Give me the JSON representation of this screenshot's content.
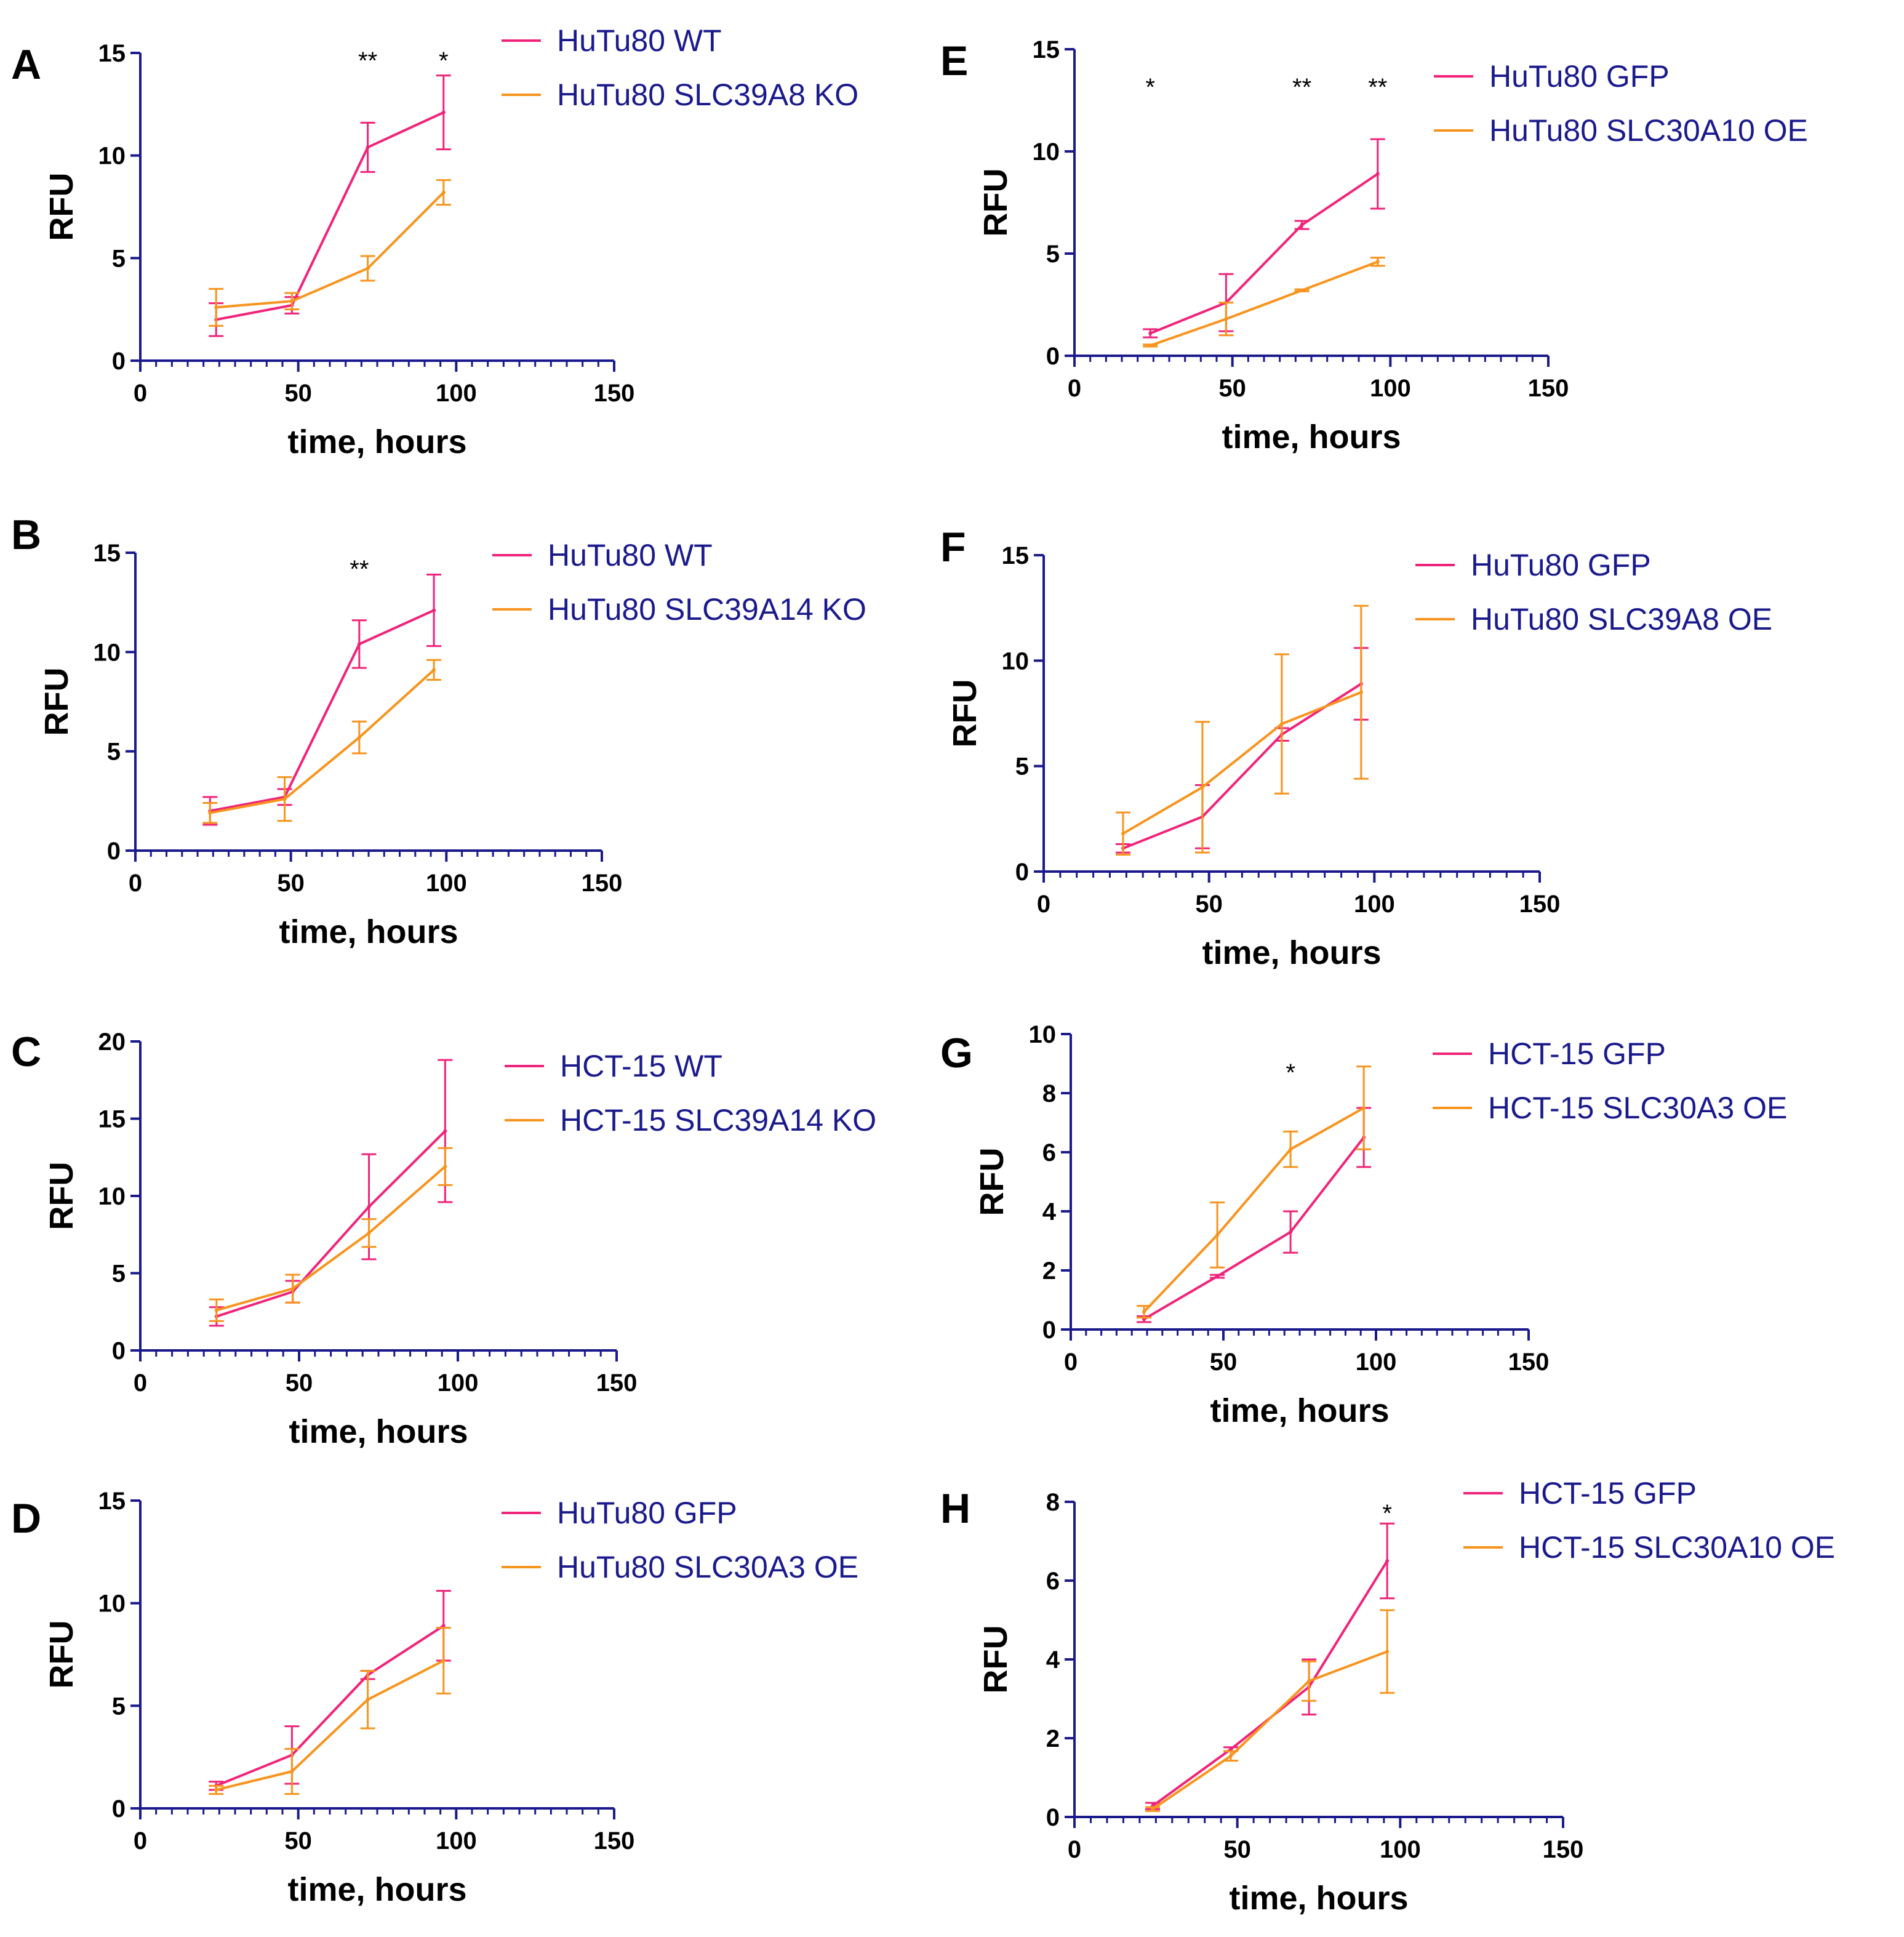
{
  "figure": {
    "axis_color": "#1a1a8c",
    "colors": {
      "wt": "#f0237a",
      "mut": "#f7941d"
    }
  },
  "chart_data": [
    {
      "id": "A",
      "type": "line",
      "panel": "A",
      "xlabel": "time, hours",
      "ylabel": "RFU",
      "xlim": [
        0,
        150
      ],
      "ylim": [
        0,
        15
      ],
      "xticks": [
        0,
        50,
        100,
        150
      ],
      "yticks": [
        0,
        5,
        10,
        15
      ],
      "legend": [
        "HuTu80 WT",
        "HuTu80 SLC39A8 KO"
      ],
      "significance": [
        {
          "x": 72,
          "label": "**"
        },
        {
          "x": 96,
          "label": "*"
        }
      ],
      "series": [
        {
          "name": "HuTu80 WT",
          "color": "#f0237a",
          "x": [
            24,
            48,
            72,
            96
          ],
          "y": [
            2.0,
            2.7,
            10.4,
            12.1
          ],
          "err": [
            0.8,
            0.4,
            1.2,
            1.8
          ]
        },
        {
          "name": "HuTu80 SLC39A8 KO",
          "color": "#f7941d",
          "x": [
            24,
            48,
            72,
            96
          ],
          "y": [
            2.6,
            2.9,
            4.5,
            8.2
          ],
          "err": [
            0.9,
            0.4,
            0.6,
            0.6
          ]
        }
      ]
    },
    {
      "id": "B",
      "type": "line",
      "panel": "B",
      "xlabel": "time, hours",
      "ylabel": "RFU",
      "xlim": [
        0,
        150
      ],
      "ylim": [
        0,
        15
      ],
      "xticks": [
        0,
        50,
        100,
        150
      ],
      "yticks": [
        0,
        5,
        10,
        15
      ],
      "legend": [
        "HuTu80 WT",
        "HuTu80 SLC39A14 KO"
      ],
      "significance": [
        {
          "x": 72,
          "label": "**"
        }
      ],
      "series": [
        {
          "name": "HuTu80 WT",
          "color": "#f0237a",
          "x": [
            24,
            48,
            72,
            96
          ],
          "y": [
            2.0,
            2.7,
            10.4,
            12.1
          ],
          "err": [
            0.7,
            0.4,
            1.2,
            1.8
          ]
        },
        {
          "name": "HuTu80 SLC39A14 KO",
          "color": "#f7941d",
          "x": [
            24,
            48,
            72,
            96
          ],
          "y": [
            1.9,
            2.6,
            5.7,
            9.1
          ],
          "err": [
            0.5,
            1.1,
            0.8,
            0.5
          ]
        }
      ]
    },
    {
      "id": "C",
      "type": "line",
      "panel": "C",
      "xlabel": "time, hours",
      "ylabel": "RFU",
      "xlim": [
        0,
        150
      ],
      "ylim": [
        0,
        20
      ],
      "xticks": [
        0,
        50,
        100,
        150
      ],
      "yticks": [
        0,
        5,
        10,
        15,
        20
      ],
      "legend": [
        "HCT-15 WT",
        "HCT-15 SLC39A14 KO"
      ],
      "significance": [],
      "series": [
        {
          "name": "HCT-15 WT",
          "color": "#f0237a",
          "x": [
            24,
            48,
            72,
            96
          ],
          "y": [
            2.2,
            3.8,
            9.3,
            14.2
          ],
          "err": [
            0.6,
            0.7,
            3.4,
            4.6
          ]
        },
        {
          "name": "HCT-15 SLC39A14 KO",
          "color": "#f7941d",
          "x": [
            24,
            48,
            72,
            96
          ],
          "y": [
            2.6,
            4.0,
            7.6,
            11.9
          ],
          "err": [
            0.7,
            0.9,
            0.9,
            1.2
          ]
        }
      ]
    },
    {
      "id": "D",
      "type": "line",
      "panel": "D",
      "xlabel": "time, hours",
      "ylabel": "RFU",
      "xlim": [
        0,
        150
      ],
      "ylim": [
        0,
        15
      ],
      "xticks": [
        0,
        50,
        100,
        150
      ],
      "yticks": [
        0,
        5,
        10,
        15
      ],
      "legend": [
        "HuTu80 GFP",
        "HuTu80 SLC30A3 OE"
      ],
      "significance": [],
      "series": [
        {
          "name": "HuTu80 GFP",
          "color": "#f0237a",
          "x": [
            24,
            48,
            72,
            96
          ],
          "y": [
            1.1,
            2.6,
            6.5,
            8.9
          ],
          "err": [
            0.2,
            1.4,
            0.2,
            1.7
          ]
        },
        {
          "name": "HuTu80 SLC30A3 OE",
          "color": "#f7941d",
          "x": [
            24,
            48,
            72,
            96
          ],
          "y": [
            0.9,
            1.8,
            5.3,
            7.2
          ],
          "err": [
            0.2,
            1.1,
            1.4,
            1.6
          ]
        }
      ]
    },
    {
      "id": "E",
      "type": "line",
      "panel": "E",
      "xlabel": "time, hours",
      "ylabel": "RFU",
      "xlim": [
        0,
        150
      ],
      "ylim": [
        0,
        15
      ],
      "xticks": [
        0,
        50,
        100,
        150
      ],
      "yticks": [
        0,
        5,
        10,
        15
      ],
      "legend": [
        "HuTu80 GFP",
        "HuTu80 SLC30A10 OE"
      ],
      "significance": [
        {
          "x": 24,
          "label": "*"
        },
        {
          "x": 72,
          "label": "**"
        },
        {
          "x": 96,
          "label": "**"
        }
      ],
      "series": [
        {
          "name": "HuTu80 GFP",
          "color": "#f0237a",
          "x": [
            24,
            48,
            72,
            96
          ],
          "y": [
            1.1,
            2.6,
            6.4,
            8.9
          ],
          "err": [
            0.2,
            1.4,
            0.2,
            1.7
          ]
        },
        {
          "name": "HuTu80 SLC30A10 OE",
          "color": "#f7941d",
          "x": [
            24,
            48,
            72,
            96
          ],
          "y": [
            0.5,
            1.8,
            3.2,
            4.6
          ],
          "err": [
            0.05,
            0.8,
            0.05,
            0.2
          ]
        }
      ]
    },
    {
      "id": "F",
      "type": "line",
      "panel": "F",
      "xlabel": "time, hours",
      "ylabel": "RFU",
      "xlim": [
        0,
        150
      ],
      "ylim": [
        0,
        15
      ],
      "xticks": [
        0,
        50,
        100,
        150
      ],
      "yticks": [
        0,
        5,
        10,
        15
      ],
      "legend": [
        "HuTu80 GFP",
        "HuTu80 SLC39A8 OE"
      ],
      "significance": [],
      "series": [
        {
          "name": "HuTu80 GFP",
          "color": "#f0237a",
          "x": [
            24,
            48,
            72,
            96
          ],
          "y": [
            1.1,
            2.6,
            6.5,
            8.9
          ],
          "err": [
            0.2,
            1.5,
            0.3,
            1.7
          ]
        },
        {
          "name": "HuTu80 SLC39A8 OE",
          "color": "#f7941d",
          "x": [
            24,
            48,
            72,
            96
          ],
          "y": [
            1.8,
            4.0,
            7.0,
            8.5
          ],
          "err": [
            1.0,
            3.1,
            3.3,
            4.1
          ]
        }
      ]
    },
    {
      "id": "G",
      "type": "line",
      "panel": "G",
      "xlabel": "time, hours",
      "ylabel": "RFU",
      "xlim": [
        0,
        150
      ],
      "ylim": [
        0,
        10
      ],
      "xticks": [
        0,
        50,
        100,
        150
      ],
      "yticks": [
        0,
        2,
        4,
        6,
        8,
        10
      ],
      "legend": [
        "HCT-15 GFP",
        "HCT-15 SLC30A3 OE"
      ],
      "significance": [
        {
          "x": 72,
          "label": "*"
        }
      ],
      "series": [
        {
          "name": "HCT-15 GFP",
          "color": "#f0237a",
          "x": [
            24,
            48,
            72,
            96
          ],
          "y": [
            0.35,
            1.8,
            3.3,
            6.5
          ],
          "err": [
            0.1,
            0.05,
            0.7,
            1.0
          ]
        },
        {
          "name": "HCT-15 SLC30A3 OE",
          "color": "#f7941d",
          "x": [
            24,
            48,
            72,
            96
          ],
          "y": [
            0.6,
            3.2,
            6.1,
            7.5
          ],
          "err": [
            0.2,
            1.1,
            0.6,
            1.4
          ]
        }
      ]
    },
    {
      "id": "H",
      "type": "line",
      "panel": "H",
      "xlabel": "time, hours",
      "ylabel": "RFU",
      "xlim": [
        0,
        150
      ],
      "ylim": [
        0,
        8
      ],
      "xticks": [
        0,
        50,
        100,
        150
      ],
      "yticks": [
        0,
        2,
        4,
        6,
        8
      ],
      "legend": [
        "HCT-15 GFP",
        "HCT-15 SLC30A10 OE"
      ],
      "significance": [
        {
          "x": 96,
          "label": "*"
        }
      ],
      "series": [
        {
          "name": "HCT-15 GFP",
          "color": "#f0237a",
          "x": [
            24,
            48,
            72,
            96
          ],
          "y": [
            0.28,
            1.72,
            3.3,
            6.5
          ],
          "err": [
            0.08,
            0.05,
            0.7,
            0.95
          ]
        },
        {
          "name": "HCT-15 SLC30A10 OE",
          "color": "#f7941d",
          "x": [
            24,
            48,
            72,
            96
          ],
          "y": [
            0.2,
            1.55,
            3.45,
            4.2
          ],
          "err": [
            0.05,
            0.12,
            0.5,
            1.05
          ]
        }
      ]
    }
  ]
}
